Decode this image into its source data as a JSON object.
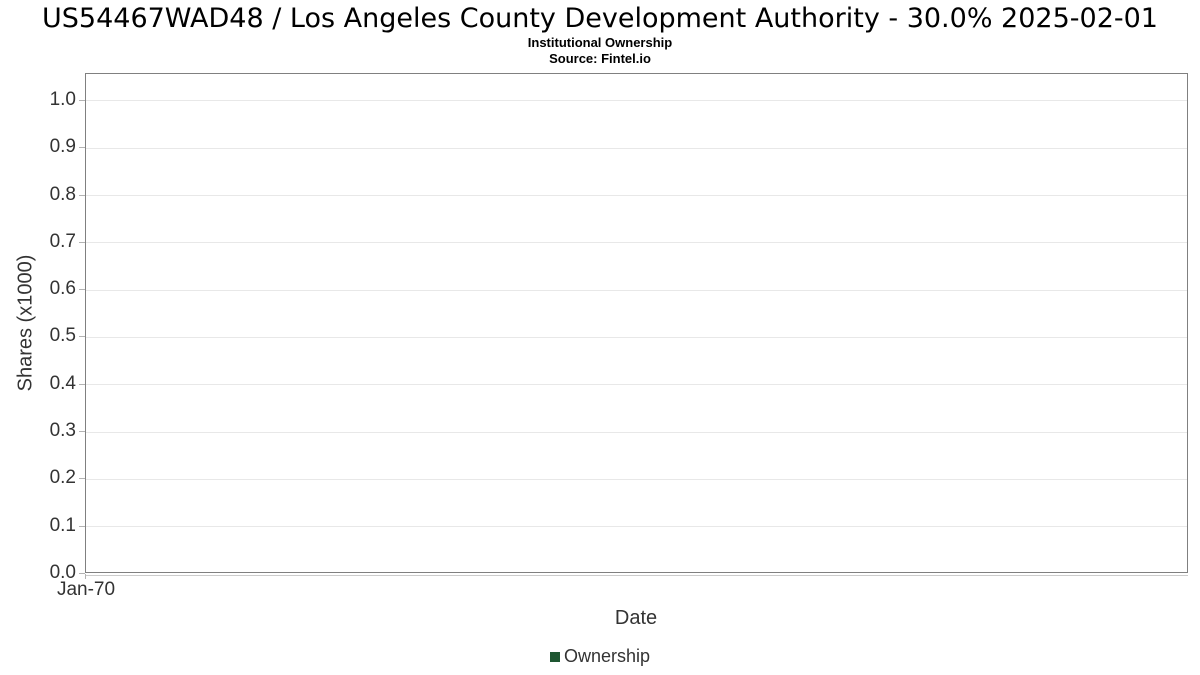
{
  "chart_data": {
    "type": "line",
    "title": "US54467WAD48 / Los Angeles County Development Authority - 30.0% 2025-02-01",
    "subtitle": "Institutional Ownership",
    "source": "Source: Fintel.io",
    "xlabel": "Date",
    "ylabel": "Shares (x1000)",
    "ylim": [
      0,
      1.057
    ],
    "ytick_values": [
      0,
      0.1,
      0.2,
      0.3,
      0.4,
      0.5,
      0.6,
      0.7,
      0.8,
      0.9,
      1.0
    ],
    "ytick_labels": [
      "0.0",
      "0.1",
      "0.2",
      "0.3",
      "0.4",
      "0.5",
      "0.6",
      "0.7",
      "0.8",
      "0.9",
      "1.0"
    ],
    "xticks": [
      {
        "label": "Jan-70",
        "fraction": 0
      }
    ],
    "grid": true,
    "legend_position": "bottom",
    "series": [
      {
        "name": "Ownership",
        "color": "#1e5631",
        "x": [],
        "values": []
      }
    ]
  },
  "colors": {
    "plot_border": "#808080",
    "gridline": "#e8e8e8",
    "axis_line": "#cccccc",
    "tick": "#b3b3b3",
    "text": "#333333",
    "title_text": "#000000",
    "legend_marker": "#1e5631"
  }
}
